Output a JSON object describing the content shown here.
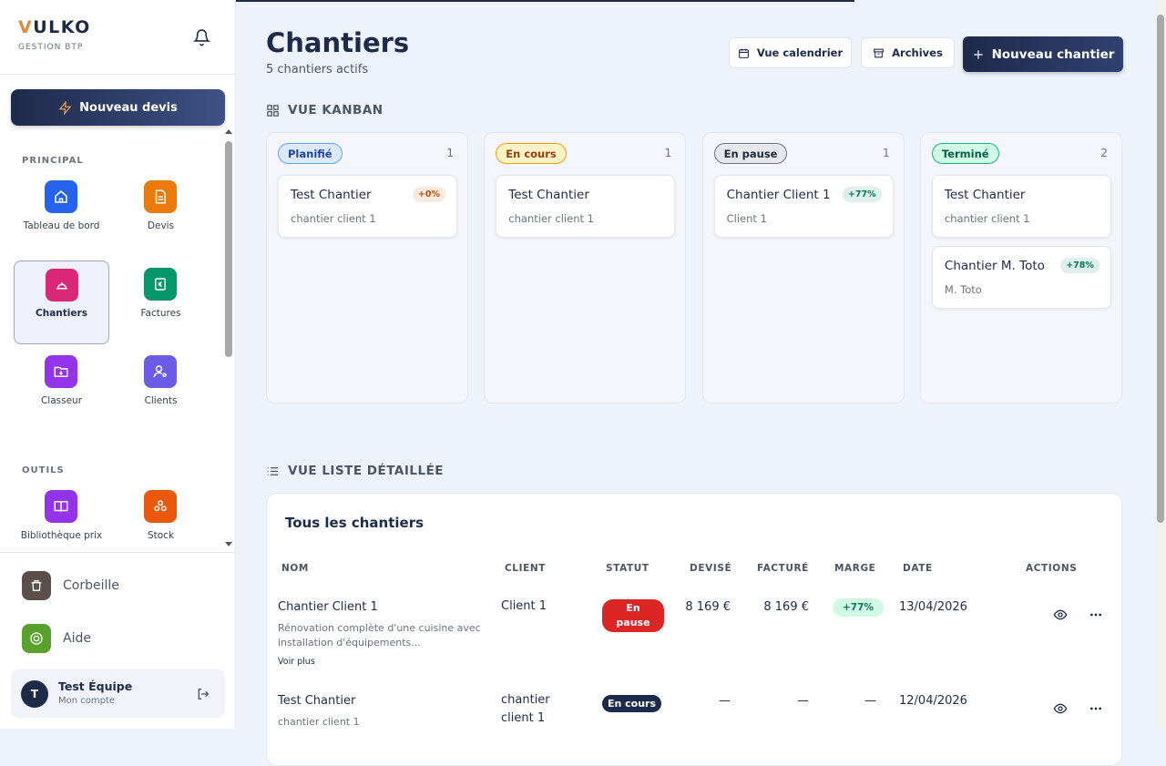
{
  "sidebar": {
    "brand": "VULKO",
    "tagline": "GESTION BTP",
    "cta": "Nouveau devis",
    "sections": [
      {
        "title": "PRINCIPAL",
        "items": [
          "Tableau de bord",
          "Devis",
          "Chantiers",
          "Factures",
          "Classeur",
          "Clients"
        ]
      },
      {
        "title": "OUTILS",
        "items": [
          "Bibliothèque prix",
          "Stock"
        ]
      }
    ],
    "bottom": [
      "Corbeille",
      "Aide"
    ],
    "account": {
      "initial": "T",
      "name": "Test Équipe",
      "sub": "Mon compte"
    }
  },
  "header": {
    "title": "Chantiers",
    "subtitle": "5 chantiers actifs",
    "buttons": [
      "Vue calendrier",
      "Archives",
      "Nouveau chantier"
    ]
  },
  "kanban": {
    "title": "VUE KANBAN",
    "columns": [
      {
        "label": "Planifié",
        "count": 1,
        "cards": [
          {
            "title": "Test Chantier",
            "client": "chantier client 1",
            "margin": "+0%",
            "margin_color": "#b45309"
          }
        ]
      },
      {
        "label": "En cours",
        "count": 1,
        "cards": [
          {
            "title": "Test Chantier",
            "client": "chantier client 1"
          }
        ]
      },
      {
        "label": "En pause",
        "count": 1,
        "cards": [
          {
            "title": "Chantier Client 1",
            "client": "Client 1",
            "margin": "+77%",
            "margin_color": "#047857"
          }
        ]
      },
      {
        "label": "Terminé",
        "count": 2,
        "cards": [
          {
            "title": "Test Chantier",
            "client": "chantier client 1"
          },
          {
            "title": "Chantier M. Toto",
            "client": "M. Toto",
            "margin": "+78%",
            "margin_color": "#047857"
          }
        ]
      }
    ]
  },
  "list": {
    "title": "VUE LISTE DÉTAILLÉE",
    "card_title": "Tous les chantiers",
    "columns": [
      "NOM",
      "CLIENT",
      "STATUT",
      "DEVISÉ",
      "FACTURÉ",
      "MARGE",
      "DATE",
      "ACTIONS"
    ],
    "rows": [
      {
        "name": "Chantier Client 1",
        "desc": "Rénovation complète d'une cuisine avec installation d'équipements...",
        "more": "Voir plus",
        "client": "Client 1",
        "status": "En pause",
        "status_color": "#dc2626",
        "quoted": "8 169 €",
        "invoiced": "8 169 €",
        "margin": "+77%",
        "date": "13/04/2026"
      },
      {
        "name": "Test Chantier",
        "desc": "chantier client 1",
        "client": "chantier client 1",
        "status": "En cours",
        "status_color": "#1e2a4a",
        "quoted": "—",
        "invoiced": "—",
        "margin": "—",
        "date": "12/04/2026"
      }
    ]
  }
}
